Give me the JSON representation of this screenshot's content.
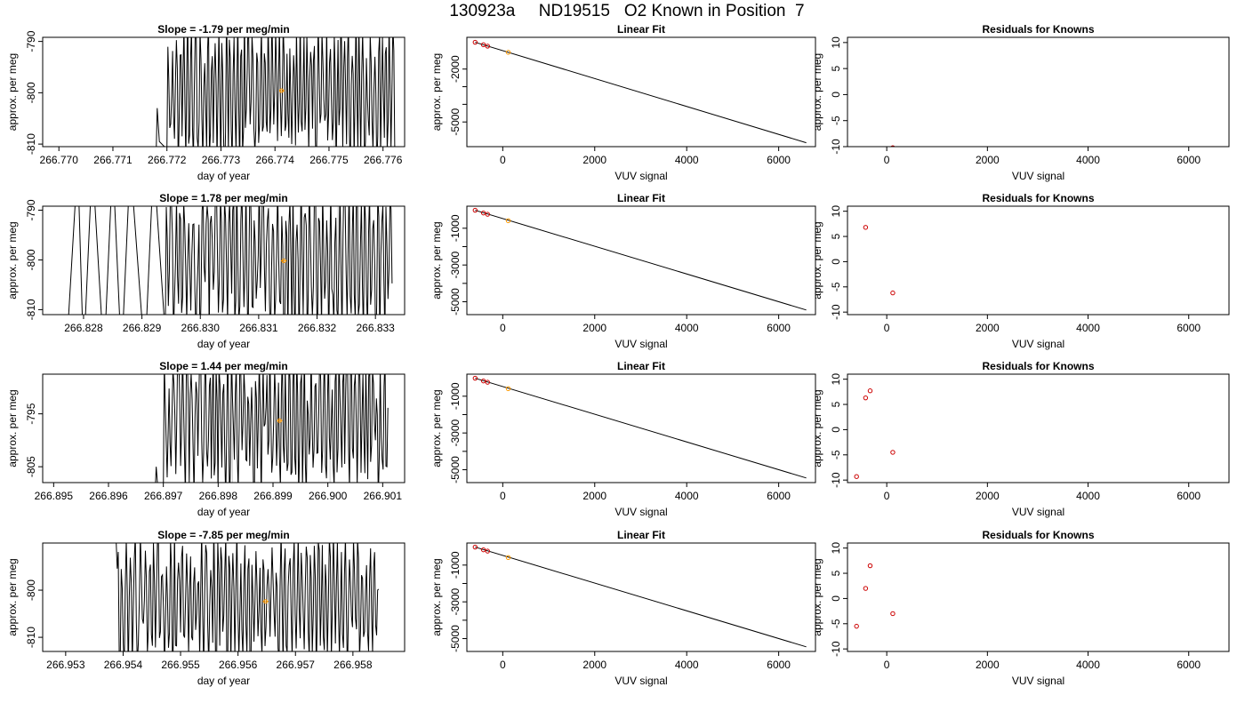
{
  "figure_title": "130923a     ND19515   O2 Known in Position  7",
  "chart_data": [
    {
      "type": "line",
      "panel": "timeseries",
      "row": 1,
      "title": "Slope =  -1.79  per meg/min",
      "xlabel": "day of year",
      "ylabel": "approx. per meg",
      "xlim": [
        266.7697,
        266.7764
      ],
      "ylim": [
        -810.5,
        -789.2
      ],
      "xticks": [
        "266.770",
        "266.771",
        "266.772",
        "266.773",
        "266.774",
        "266.775",
        "266.776"
      ],
      "yticks": [
        "-790",
        "-800",
        "-810"
      ],
      "ytick_values": [
        -790,
        -800,
        -810
      ],
      "vlines": [
        266.7733,
        266.7751
      ],
      "mean_point": [
        266.77412,
        -799.6
      ],
      "mean_segment": [
        266.77408,
        266.77418
      ],
      "trace": {
        "start": 266.7718,
        "end": 266.77623,
        "step": 1.75e-05,
        "center": -799.5,
        "amplitude": 11.5,
        "seed": 11,
        "lead": [
          [
            266.7718,
            -812
          ],
          [
            266.77182,
            -803
          ],
          [
            266.77186,
            -809.5
          ],
          [
            266.772,
            -811
          ]
        ]
      }
    },
    {
      "type": "scatter",
      "panel": "linear-fit",
      "row": 1,
      "title": "Linear Fit",
      "xlabel": "VUV signal",
      "ylabel": "approx. per meg",
      "xlim": [
        -780,
        6800
      ],
      "ylim": [
        -6400,
        -200
      ],
      "xticks": [
        "0",
        "2000",
        "4000",
        "6000"
      ],
      "xtick_values": [
        0,
        2000,
        4000,
        6000
      ],
      "yticks": [
        "-2000",
        "-5000"
      ],
      "ytick_values": [
        -2000,
        -5000
      ],
      "minor_yticks": [
        -3000,
        -4000
      ],
      "fit_line": [
        [
          -600,
          -480
        ],
        [
          6600,
          -6180
        ]
      ],
      "knowns": [
        [
          -600,
          -480
        ],
        [
          -420,
          -620
        ],
        [
          -330,
          -700
        ]
      ],
      "sample": [
        120,
        -1050
      ]
    },
    {
      "type": "scatter",
      "panel": "residuals",
      "row": 1,
      "title": "Residuals for Knowns",
      "xlabel": "VUV signal",
      "ylabel": "approx. per meg",
      "xlim": [
        -780,
        6800
      ],
      "ylim": [
        -10,
        11
      ],
      "xticks": [
        "0",
        "2000",
        "4000",
        "6000"
      ],
      "xtick_values": [
        0,
        2000,
        4000,
        6000
      ],
      "yticks": [
        "10",
        "5",
        "0",
        "-5",
        "-10"
      ],
      "ytick_values": [
        10,
        5,
        0,
        -5,
        -10
      ],
      "residuals": [
        [
          120,
          -10.2
        ]
      ]
    },
    {
      "type": "line",
      "panel": "timeseries",
      "row": 2,
      "title": "Slope =  1.78  per meg/min",
      "xlabel": "day of year",
      "ylabel": "approx. per meg",
      "xlim": [
        266.8273,
        266.8335
      ],
      "ylim": [
        -811,
        -789.2
      ],
      "xticks": [
        "266.828",
        "266.829",
        "266.830",
        "266.831",
        "266.832",
        "266.833"
      ],
      "yticks": [
        "-790",
        "-800",
        "-810"
      ],
      "ytick_values": [
        -790,
        -800,
        -810
      ],
      "vlines": [
        266.83061,
        266.83236
      ],
      "mean_point": [
        266.83143,
        -800.2
      ],
      "mean_segment": [
        266.83138,
        266.83148
      ],
      "trace": {
        "start": 266.8277,
        "end": 266.8333,
        "step": 1.75e-05,
        "center": -800.0,
        "amplitude": 13,
        "seed": 23,
        "lead": [
          [
            266.8277,
            -820
          ],
          [
            266.8279,
            -780
          ],
          [
            266.828,
            -820
          ],
          [
            266.82815,
            -780
          ],
          [
            266.82835,
            -820
          ],
          [
            266.8285,
            -780
          ],
          [
            266.82865,
            -820
          ],
          [
            266.8288,
            -780
          ],
          [
            266.82905,
            -820
          ],
          [
            266.8292,
            -780
          ],
          [
            266.8294,
            -815
          ]
        ]
      }
    },
    {
      "type": "scatter",
      "panel": "linear-fit",
      "row": 2,
      "title": "Linear Fit",
      "xlabel": "VUV signal",
      "ylabel": "approx. per meg",
      "xlim": [
        -780,
        6800
      ],
      "ylim": [
        -5700,
        200
      ],
      "xticks": [
        "0",
        "2000",
        "4000",
        "6000"
      ],
      "xtick_values": [
        0,
        2000,
        4000,
        6000
      ],
      "yticks": [
        "-1000",
        "-3000",
        "-5000"
      ],
      "ytick_values": [
        -1000,
        -3000,
        -5000
      ],
      "minor_yticks": [
        -2000,
        -4000
      ],
      "fit_line": [
        [
          -600,
          -20
        ],
        [
          6600,
          -5450
        ]
      ],
      "knowns": [
        [
          -600,
          -20
        ],
        [
          -420,
          -170
        ],
        [
          -330,
          -240
        ]
      ],
      "sample": [
        120,
        -590
      ]
    },
    {
      "type": "scatter",
      "panel": "residuals",
      "row": 2,
      "title": "Residuals for Knowns",
      "xlabel": "VUV signal",
      "ylabel": "approx. per meg",
      "xlim": [
        -780,
        6800
      ],
      "ylim": [
        -10.5,
        11
      ],
      "xticks": [
        "0",
        "2000",
        "4000",
        "6000"
      ],
      "xtick_values": [
        0,
        2000,
        4000,
        6000
      ],
      "yticks": [
        "10",
        "5",
        "0",
        "-5",
        "-10"
      ],
      "ytick_values": [
        10,
        5,
        0,
        -5,
        -10
      ],
      "residuals": [
        [
          -420,
          6.8
        ],
        [
          120,
          -6.2
        ]
      ]
    },
    {
      "type": "line",
      "panel": "timeseries",
      "row": 3,
      "title": "Slope =  1.44  per meg/min",
      "xlabel": "day of year",
      "ylabel": "approx. per meg",
      "xlim": [
        266.8948,
        266.9014
      ],
      "ylim": [
        -808,
        -787.5
      ],
      "xticks": [
        "266.895",
        "266.896",
        "266.897",
        "266.898",
        "266.899",
        "266.900",
        "266.901"
      ],
      "yticks": [
        "-795",
        "-805"
      ],
      "ytick_values": [
        -795,
        -805
      ],
      "vlines": [
        266.89826,
        266.90004
      ],
      "mean_point": [
        266.89912,
        -796.3
      ],
      "mean_segment": [
        266.89907,
        266.89917
      ],
      "trace": {
        "start": 266.89685,
        "end": 266.9011,
        "step": 1.75e-05,
        "center": -796.5,
        "amplitude": 11,
        "seed": 37,
        "lead": [
          [
            266.89685,
            -810
          ],
          [
            266.89687,
            -805
          ],
          [
            266.8969,
            -809
          ],
          [
            266.897,
            -810
          ]
        ]
      }
    },
    {
      "type": "scatter",
      "panel": "linear-fit",
      "row": 3,
      "title": "Linear Fit",
      "xlabel": "VUV signal",
      "ylabel": "approx. per meg",
      "xlim": [
        -780,
        6800
      ],
      "ylim": [
        -5700,
        200
      ],
      "xticks": [
        "0",
        "2000",
        "4000",
        "6000"
      ],
      "xtick_values": [
        0,
        2000,
        4000,
        6000
      ],
      "yticks": [
        "-1000",
        "-3000",
        "-5000"
      ],
      "ytick_values": [
        -1000,
        -3000,
        -5000
      ],
      "minor_yticks": [
        -2000,
        -4000
      ],
      "fit_line": [
        [
          -600,
          -20
        ],
        [
          6600,
          -5450
        ]
      ],
      "knowns": [
        [
          -600,
          -20
        ],
        [
          -420,
          -170
        ],
        [
          -330,
          -240
        ]
      ],
      "sample": [
        120,
        -590
      ]
    },
    {
      "type": "scatter",
      "panel": "residuals",
      "row": 3,
      "title": "Residuals for Knowns",
      "xlabel": "VUV signal",
      "ylabel": "approx. per meg",
      "xlim": [
        -780,
        6800
      ],
      "ylim": [
        -10.5,
        11
      ],
      "xticks": [
        "0",
        "2000",
        "4000",
        "6000"
      ],
      "xtick_values": [
        0,
        2000,
        4000,
        6000
      ],
      "yticks": [
        "10",
        "5",
        "0",
        "-5",
        "-10"
      ],
      "ytick_values": [
        10,
        5,
        0,
        -5,
        -10
      ],
      "residuals": [
        [
          -600,
          -9.3
        ],
        [
          -420,
          6.3
        ],
        [
          -330,
          7.7
        ],
        [
          120,
          -4.5
        ]
      ]
    },
    {
      "type": "line",
      "panel": "timeseries",
      "row": 4,
      "title": "Slope =  -7.85  per meg/min",
      "xlabel": "day of year",
      "ylabel": "approx. per meg",
      "xlim": [
        266.9526,
        266.9589
      ],
      "ylim": [
        -813,
        -790
      ],
      "xticks": [
        "266.953",
        "266.954",
        "266.955",
        "266.956",
        "266.957",
        "266.958"
      ],
      "yticks": [
        "-800",
        "-810"
      ],
      "ytick_values": [
        -800,
        -810
      ],
      "vlines": [
        266.9556,
        266.95737
      ],
      "mean_point": [
        266.95648,
        -802.4
      ],
      "mean_segment": [
        266.95643,
        266.95653
      ],
      "trace": {
        "start": 266.95382,
        "end": 266.95845,
        "step": 1.75e-05,
        "center": -802.0,
        "amplitude": 11.5,
        "seed": 53,
        "lead": [
          [
            266.95382,
            -785
          ],
          [
            266.95388,
            -790
          ]
        ]
      }
    },
    {
      "type": "scatter",
      "panel": "linear-fit",
      "row": 4,
      "title": "Linear Fit",
      "xlabel": "VUV signal",
      "ylabel": "approx. per meg",
      "xlim": [
        -780,
        6800
      ],
      "ylim": [
        -5700,
        200
      ],
      "xticks": [
        "0",
        "2000",
        "4000",
        "6000"
      ],
      "xtick_values": [
        0,
        2000,
        4000,
        6000
      ],
      "yticks": [
        "-1000",
        "-3000",
        "-5000"
      ],
      "ytick_values": [
        -1000,
        -3000,
        -5000
      ],
      "minor_yticks": [
        -2000,
        -4000
      ],
      "fit_line": [
        [
          -600,
          -20
        ],
        [
          6600,
          -5450
        ]
      ],
      "knowns": [
        [
          -600,
          -20
        ],
        [
          -420,
          -170
        ],
        [
          -330,
          -240
        ]
      ],
      "sample": [
        120,
        -590
      ]
    },
    {
      "type": "scatter",
      "panel": "residuals",
      "row": 4,
      "title": "Residuals for Knowns",
      "xlabel": "VUV signal",
      "ylabel": "approx. per meg",
      "xlim": [
        -780,
        6800
      ],
      "ylim": [
        -10.5,
        11
      ],
      "xticks": [
        "0",
        "2000",
        "4000",
        "6000"
      ],
      "xtick_values": [
        0,
        2000,
        4000,
        6000
      ],
      "yticks": [
        "10",
        "5",
        "0",
        "-5",
        "-10"
      ],
      "ytick_values": [
        10,
        5,
        0,
        -5,
        -10
      ],
      "residuals": [
        [
          -600,
          -5.5
        ],
        [
          -420,
          2.0
        ],
        [
          -330,
          6.5
        ],
        [
          120,
          -3.0
        ]
      ]
    }
  ],
  "colors": {
    "line": "#000000",
    "gridline": "#cccccc",
    "knowns": "#cc0000",
    "sample": "#ff9900"
  }
}
